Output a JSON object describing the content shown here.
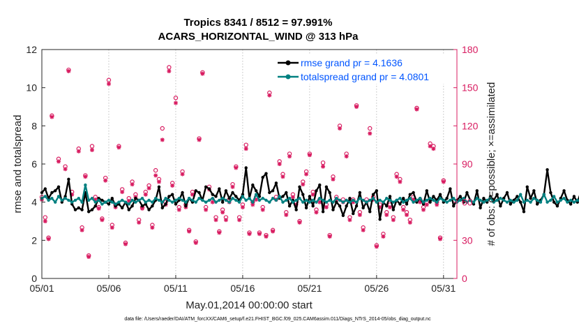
{
  "chart_data": {
    "type": "line",
    "title_line1": "Tropics 8341 / 8512 = 97.991%",
    "title_line2": "ACARS_HORIZONTAL_WIND @ 313 hPa",
    "xlabel": "May.01,2014 00:00:00 start",
    "ylabel_left": "rmse and totalspread",
    "ylabel_right": "# of obs: o=possible; ×=assimilated",
    "footnote": "data file: /Users/raeder/DAI/ATM_forcXX/CAM6_setup/f.e21.FHIST_BGC.f09_025.CAM6assim.011/Diags_NTrS_2014-05/obs_diag_output.nc",
    "xlim": [
      1,
      32
    ],
    "ylim_left": [
      0,
      12
    ],
    "ylim_right": [
      0,
      180
    ],
    "x_ticks": [
      1,
      6,
      11,
      16,
      21,
      26,
      31
    ],
    "x_tick_labels": [
      "05/01",
      "05/06",
      "05/11",
      "05/16",
      "05/21",
      "05/26",
      "05/31"
    ],
    "y_ticks_left": [
      0,
      2,
      4,
      6,
      8,
      10,
      12
    ],
    "y_ticks_right": [
      0,
      30,
      60,
      90,
      120,
      150,
      180
    ],
    "colors": {
      "rmse": "#000000",
      "totalspread": "#008080",
      "obs": "#d81b60",
      "legend_text": "#0055ff"
    },
    "series": [
      {
        "name": "rmse grand pr = 4.1636",
        "axis": "left",
        "x_start": 1.0,
        "x_step": 0.25,
        "values": [
          4.5,
          4.7,
          4.2,
          4.5,
          4.6,
          4.8,
          4.0,
          4.3,
          5.2,
          3.9,
          3.6,
          3.7,
          3.6,
          4.5,
          3.5,
          3.6,
          3.8,
          4.2,
          4.1,
          4.0,
          3.9,
          4.2,
          3.8,
          3.9,
          3.7,
          4.0,
          3.6,
          3.8,
          4.2,
          4.1,
          3.8,
          3.9,
          3.6,
          3.8,
          4.1,
          4.8,
          3.7,
          3.9,
          4.3,
          4.4,
          3.9,
          4.1,
          4.5,
          3.8,
          4.2,
          4.0,
          4.6,
          4.5,
          4.1,
          4.8,
          4.7,
          4.4,
          4.3,
          4.7,
          4.0,
          4.6,
          4.2,
          4.5,
          4.3,
          4.1,
          4.4,
          5.8,
          4.2,
          4.9,
          4.6,
          4.3,
          5.3,
          5.5,
          4.5,
          4.6,
          5.0,
          4.2,
          4.3,
          4.5,
          3.8,
          4.1,
          3.6,
          4.8,
          4.4,
          3.7,
          4.3,
          3.8,
          4.6,
          4.9,
          3.5,
          4.8,
          4.5,
          3.6,
          4.0,
          3.8,
          3.3,
          3.8,
          4.2,
          3.4,
          3.8,
          4.5,
          3.7,
          4.0,
          3.5,
          4.4,
          4.6,
          3.1,
          4.0,
          3.8,
          4.3,
          3.6,
          4.1,
          3.9,
          4.2,
          3.9,
          4.4,
          4.5,
          4.0,
          4.2,
          3.9,
          4.6,
          4.0,
          4.3,
          4.1,
          4.4,
          4.0,
          4.2,
          4.7,
          3.8,
          4.1,
          4.3,
          4.0,
          4.5,
          4.1,
          3.9,
          4.6,
          3.7,
          4.2,
          4.0,
          4.3,
          4.1,
          4.4,
          3.8,
          4.2,
          4.5,
          3.9,
          4.1,
          4.3,
          4.0,
          3.5,
          4.8,
          4.2,
          4.6,
          3.9,
          4.1,
          4.4,
          5.7,
          4.5,
          4.0,
          3.8,
          4.2,
          4.6,
          4.1,
          3.9,
          4.3,
          4.0,
          4.5,
          3.8,
          4.2,
          4.1,
          4.7,
          3.9,
          4.3,
          4.0,
          4.4,
          3.7,
          4.0
        ]
      },
      {
        "name": "totalspread grand pr = 4.0801",
        "axis": "left",
        "x_start": 1.0,
        "x_step": 0.25,
        "values": [
          4.2,
          4.3,
          4.1,
          4.2,
          4.0,
          4.3,
          4.1,
          4.2,
          4.1,
          4.0,
          4.1,
          4.2,
          4.0,
          4.9,
          4.1,
          4.2,
          4.0,
          4.1,
          3.9,
          4.0,
          4.1,
          4.0,
          3.9,
          4.0,
          4.1,
          4.0,
          3.9,
          4.1,
          4.0,
          4.1,
          4.2,
          4.0,
          4.1,
          4.0,
          4.2,
          4.1,
          4.0,
          4.2,
          4.1,
          4.0,
          4.1,
          4.2,
          4.1,
          4.0,
          4.2,
          4.1,
          4.0,
          4.2,
          4.1,
          4.0,
          4.1,
          4.2,
          4.0,
          4.1,
          4.2,
          4.1,
          4.0,
          4.2,
          4.1,
          4.0,
          4.3,
          4.1,
          4.2,
          4.0,
          4.4,
          4.1,
          4.2,
          4.1,
          4.0,
          4.2,
          4.1,
          4.3,
          4.0,
          4.1,
          4.2,
          4.0,
          4.1,
          4.2,
          4.0,
          4.1,
          4.0,
          4.1,
          4.0,
          4.2,
          4.1,
          4.0,
          4.1,
          4.0,
          4.2,
          4.1,
          4.0,
          4.1,
          4.0,
          4.1,
          4.0,
          4.2,
          4.1,
          4.0,
          4.1,
          4.2,
          4.0,
          4.1,
          4.0,
          4.2,
          4.1,
          4.0,
          4.1,
          4.2,
          4.0,
          4.1,
          4.2,
          4.0,
          4.1,
          4.2,
          4.0,
          4.1,
          4.2,
          4.1,
          4.0,
          4.2,
          4.1,
          4.0,
          4.1,
          4.2,
          4.0,
          4.1,
          4.2,
          4.0,
          4.1,
          4.0,
          4.2,
          4.1,
          4.0,
          4.1,
          4.2,
          4.0,
          4.1,
          4.2,
          4.1,
          4.0,
          4.1,
          4.0,
          4.1,
          4.4,
          4.0,
          4.1,
          4.0,
          4.2,
          4.1,
          4.0,
          4.4,
          4.0,
          4.1,
          4.3,
          4.0,
          4.1,
          4.2,
          4.0,
          4.1,
          4.0,
          4.1,
          4.0,
          4.2,
          4.0,
          4.1,
          4.0,
          4.1,
          4.0,
          4.0,
          3.9
        ]
      }
    ],
    "obs_possible": {
      "axis": "right",
      "points": [
        [
          1.0,
          64
        ],
        [
          1.25,
          48
        ],
        [
          1.5,
          32
        ],
        [
          1.75,
          128
        ],
        [
          2.25,
          94
        ],
        [
          2.75,
          88
        ],
        [
          3.0,
          164
        ],
        [
          3.25,
          68
        ],
        [
          3.75,
          102
        ],
        [
          4.0,
          40
        ],
        [
          4.25,
          81
        ],
        [
          4.5,
          18
        ],
        [
          4.75,
          104
        ],
        [
          5.0,
          64
        ],
        [
          5.25,
          56
        ],
        [
          5.5,
          47
        ],
        [
          5.75,
          79
        ],
        [
          6.0,
          156
        ],
        [
          6.25,
          42
        ],
        [
          6.5,
          58
        ],
        [
          6.75,
          104
        ],
        [
          7.0,
          70
        ],
        [
          7.25,
          28
        ],
        [
          7.5,
          63
        ],
        [
          7.75,
          76
        ],
        [
          8.0,
          66
        ],
        [
          8.25,
          46
        ],
        [
          8.5,
          56
        ],
        [
          8.75,
          68
        ],
        [
          9.0,
          73
        ],
        [
          9.25,
          42
        ],
        [
          9.5,
          85
        ],
        [
          9.75,
          78
        ],
        [
          10.0,
          118
        ],
        [
          10.25,
          60
        ],
        [
          10.5,
          166
        ],
        [
          10.75,
          75
        ],
        [
          11.0,
          142
        ],
        [
          11.25,
          56
        ],
        [
          11.5,
          84
        ],
        [
          11.75,
          58
        ],
        [
          12.0,
          38
        ],
        [
          12.25,
          68
        ],
        [
          12.5,
          29
        ],
        [
          12.75,
          110
        ],
        [
          13.0,
          162
        ],
        [
          13.25,
          56
        ],
        [
          13.5,
          72
        ],
        [
          13.75,
          62
        ],
        [
          14.0,
          48
        ],
        [
          14.25,
          37
        ],
        [
          14.5,
          54
        ],
        [
          14.75,
          48
        ],
        [
          15.0,
          62
        ],
        [
          15.25,
          74
        ],
        [
          15.5,
          88
        ],
        [
          15.75,
          48
        ],
        [
          16.0,
          58
        ],
        [
          16.25,
          105
        ],
        [
          16.5,
          36
        ],
        [
          16.75,
          60
        ],
        [
          17.0,
          64
        ],
        [
          17.25,
          36
        ],
        [
          17.5,
          56
        ],
        [
          17.75,
          34
        ],
        [
          18.0,
          146
        ],
        [
          18.25,
          38
        ],
        [
          18.5,
          64
        ],
        [
          18.75,
          92
        ],
        [
          19.0,
          82
        ],
        [
          19.25,
          52
        ],
        [
          19.5,
          98
        ],
        [
          19.75,
          66
        ],
        [
          20.0,
          60
        ],
        [
          20.25,
          45
        ],
        [
          20.5,
          76
        ],
        [
          20.75,
          84
        ],
        [
          21.0,
          98
        ],
        [
          21.25,
          68
        ],
        [
          21.5,
          54
        ],
        [
          21.75,
          62
        ],
        [
          22.0,
          91
        ],
        [
          22.25,
          58
        ],
        [
          22.5,
          34
        ],
        [
          22.75,
          80
        ],
        [
          23.0,
          64
        ],
        [
          23.25,
          120
        ],
        [
          23.5,
          62
        ],
        [
          23.75,
          98
        ],
        [
          24.0,
          48
        ],
        [
          24.25,
          62
        ],
        [
          24.5,
          136
        ],
        [
          24.75,
          52
        ],
        [
          25.0,
          40
        ],
        [
          25.25,
          62
        ],
        [
          25.5,
          118
        ],
        [
          25.75,
          64
        ],
        [
          26.0,
          26
        ],
        [
          26.25,
          58
        ],
        [
          26.5,
          35
        ],
        [
          26.75,
          52
        ],
        [
          27.0,
          58
        ],
        [
          27.25,
          48
        ],
        [
          27.5,
          82
        ],
        [
          27.75,
          78
        ],
        [
          28.0,
          56
        ],
        [
          28.25,
          52
        ],
        [
          28.5,
          46
        ],
        [
          28.75,
          64
        ],
        [
          29.0,
          134
        ],
        [
          29.25,
          62
        ],
        [
          29.5,
          56
        ],
        [
          29.75,
          60
        ],
        [
          30.0,
          106
        ],
        [
          30.25,
          104
        ],
        [
          30.5,
          60
        ],
        [
          30.75,
          32
        ],
        [
          31.0,
          77
        ]
      ]
    },
    "obs_assimilated": {
      "axis": "right",
      "points": [
        [
          1.0,
          62
        ],
        [
          1.25,
          45
        ],
        [
          1.5,
          31
        ],
        [
          1.75,
          127
        ],
        [
          2.25,
          92
        ],
        [
          2.75,
          86
        ],
        [
          3.0,
          163
        ],
        [
          3.25,
          66
        ],
        [
          3.75,
          100
        ],
        [
          4.0,
          38
        ],
        [
          4.25,
          80
        ],
        [
          4.5,
          17
        ],
        [
          4.75,
          101
        ],
        [
          5.0,
          62
        ],
        [
          5.25,
          55
        ],
        [
          5.5,
          46
        ],
        [
          5.75,
          77
        ],
        [
          6.0,
          153
        ],
        [
          6.25,
          40
        ],
        [
          6.5,
          56
        ],
        [
          6.75,
          103
        ],
        [
          7.0,
          68
        ],
        [
          7.25,
          27
        ],
        [
          7.5,
          61
        ],
        [
          7.75,
          74
        ],
        [
          8.0,
          64
        ],
        [
          8.25,
          44
        ],
        [
          8.5,
          55
        ],
        [
          8.75,
          66
        ],
        [
          9.0,
          71
        ],
        [
          9.25,
          40
        ],
        [
          9.5,
          81
        ],
        [
          9.75,
          76
        ],
        [
          10.0,
          109
        ],
        [
          10.25,
          58
        ],
        [
          10.5,
          163
        ],
        [
          10.75,
          73
        ],
        [
          11.0,
          138
        ],
        [
          11.25,
          54
        ],
        [
          11.5,
          82
        ],
        [
          11.75,
          56
        ],
        [
          12.0,
          37
        ],
        [
          12.25,
          66
        ],
        [
          12.5,
          28
        ],
        [
          12.75,
          109
        ],
        [
          13.0,
          161
        ],
        [
          13.25,
          54
        ],
        [
          13.5,
          70
        ],
        [
          13.75,
          60
        ],
        [
          14.0,
          46
        ],
        [
          14.25,
          36
        ],
        [
          14.5,
          52
        ],
        [
          14.75,
          46
        ],
        [
          15.0,
          60
        ],
        [
          15.25,
          72
        ],
        [
          15.5,
          87
        ],
        [
          15.75,
          46
        ],
        [
          16.0,
          56
        ],
        [
          16.25,
          102
        ],
        [
          16.5,
          35
        ],
        [
          16.75,
          58
        ],
        [
          17.0,
          62
        ],
        [
          17.25,
          35
        ],
        [
          17.5,
          54
        ],
        [
          17.75,
          33
        ],
        [
          18.0,
          144
        ],
        [
          18.25,
          37
        ],
        [
          18.5,
          62
        ],
        [
          18.75,
          90
        ],
        [
          19.0,
          80
        ],
        [
          19.25,
          50
        ],
        [
          19.5,
          96
        ],
        [
          19.75,
          64
        ],
        [
          20.0,
          58
        ],
        [
          20.25,
          44
        ],
        [
          20.5,
          74
        ],
        [
          20.75,
          82
        ],
        [
          21.0,
          97
        ],
        [
          21.25,
          66
        ],
        [
          21.5,
          52
        ],
        [
          21.75,
          60
        ],
        [
          22.0,
          88
        ],
        [
          22.25,
          56
        ],
        [
          22.5,
          33
        ],
        [
          22.75,
          78
        ],
        [
          23.0,
          62
        ],
        [
          23.25,
          118
        ],
        [
          23.5,
          60
        ],
        [
          23.75,
          96
        ],
        [
          24.0,
          46
        ],
        [
          24.25,
          60
        ],
        [
          24.5,
          135
        ],
        [
          24.75,
          50
        ],
        [
          25.0,
          38
        ],
        [
          25.25,
          60
        ],
        [
          25.5,
          114
        ],
        [
          25.75,
          62
        ],
        [
          26.0,
          25
        ],
        [
          26.25,
          56
        ],
        [
          26.5,
          33
        ],
        [
          26.75,
          50
        ],
        [
          27.0,
          56
        ],
        [
          27.25,
          46
        ],
        [
          27.5,
          80
        ],
        [
          27.75,
          76
        ],
        [
          28.0,
          54
        ],
        [
          28.25,
          50
        ],
        [
          28.5,
          44
        ],
        [
          28.75,
          62
        ],
        [
          29.0,
          133
        ],
        [
          29.25,
          60
        ],
        [
          29.5,
          54
        ],
        [
          29.75,
          58
        ],
        [
          30.0,
          104
        ],
        [
          30.25,
          102
        ],
        [
          30.5,
          58
        ],
        [
          30.75,
          31
        ],
        [
          31.0,
          76
        ]
      ]
    },
    "legend": {
      "location": "top-right",
      "entries": [
        "rmse grand pr = 4.1636",
        "totalspread grand pr = 4.0801"
      ]
    }
  }
}
